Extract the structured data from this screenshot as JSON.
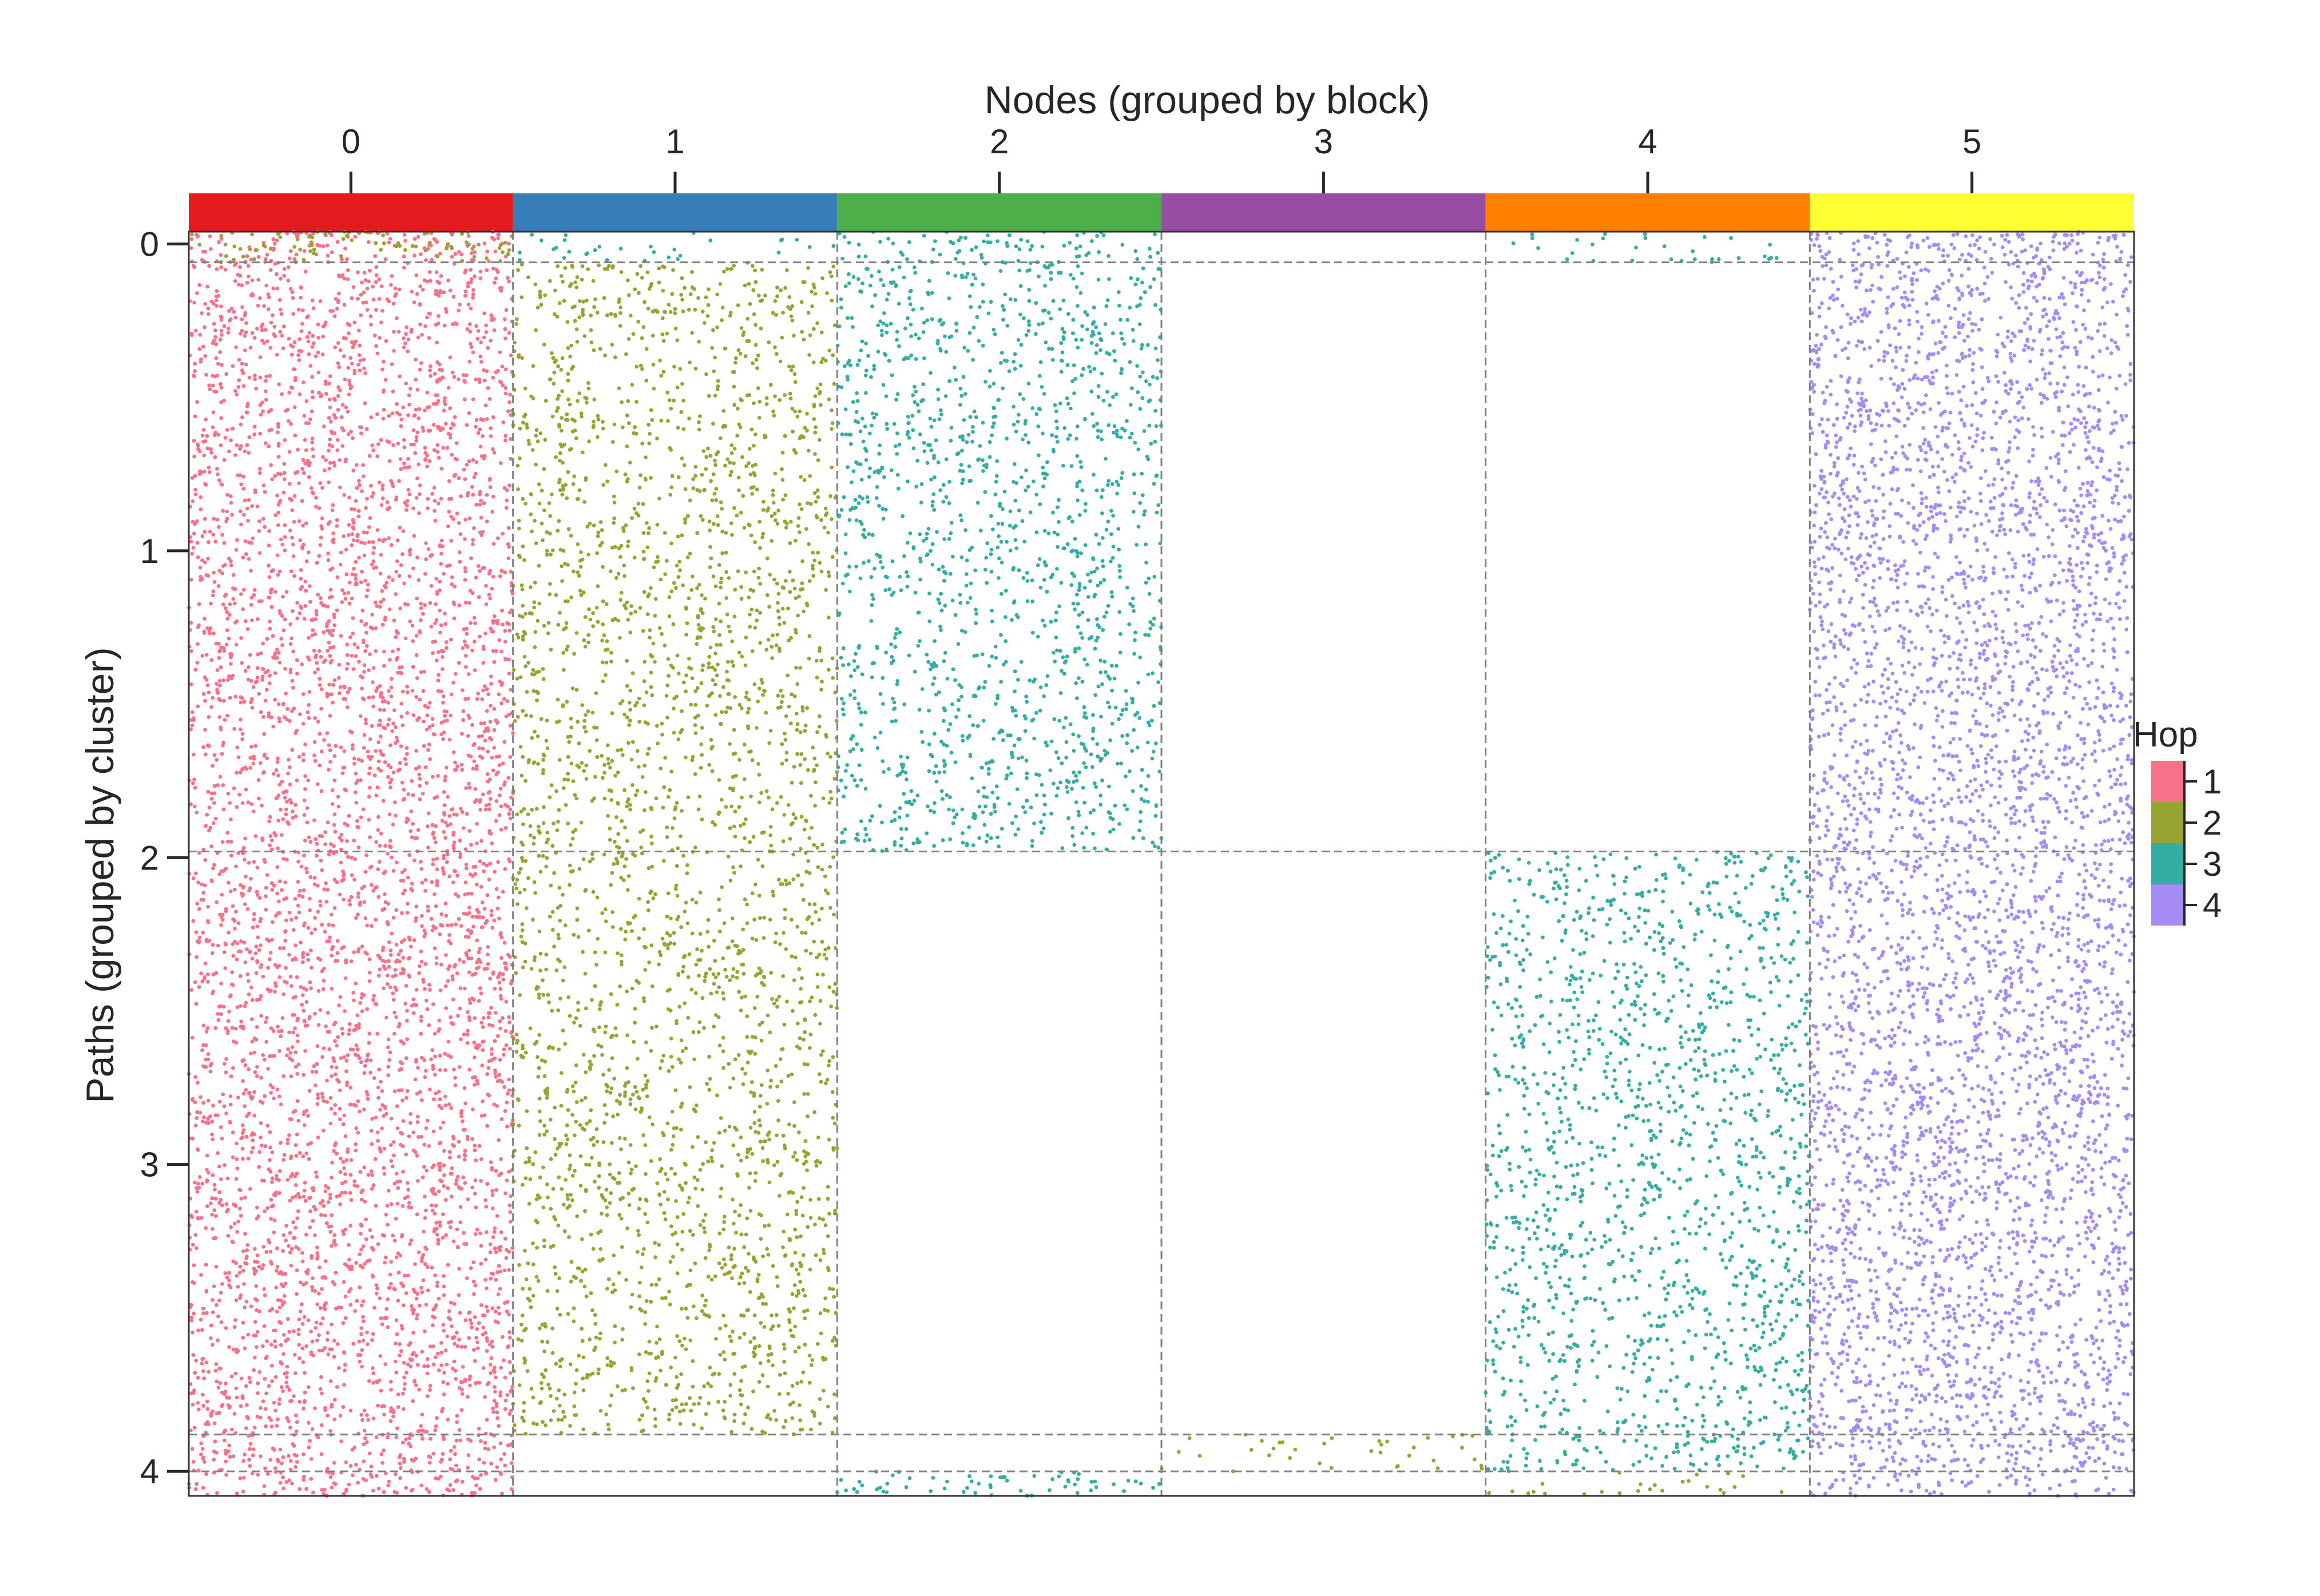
{
  "chart_data": {
    "type": "scatter",
    "title": "",
    "xlabel": "Nodes (grouped by block)",
    "ylabel": "Paths (grouped by cluster)",
    "xaxis_position": "top",
    "x_categories": [
      "0",
      "1",
      "2",
      "3",
      "4",
      "5"
    ],
    "block_colors": [
      "#e41a1c",
      "#377eb8",
      "#4daf4a",
      "#984ea3",
      "#ff7f00",
      "#ffff33"
    ],
    "y_ticks": [
      "0",
      "1",
      "2",
      "3",
      "4"
    ],
    "y_tick_values": [
      0,
      1,
      2,
      3,
      4
    ],
    "y_cluster_boundaries": [
      0.06,
      1.98,
      3.88,
      4.0
    ],
    "x_range": [
      0,
      6
    ],
    "y_range": [
      -0.04,
      4.08
    ],
    "grid": "dashed block/cluster boundaries",
    "legend": {
      "title": "Hop",
      "position": "right",
      "entries": [
        {
          "label": "1",
          "color": "#f77189"
        },
        {
          "label": "2",
          "color": "#97a431"
        },
        {
          "label": "3",
          "color": "#36ada4"
        },
        {
          "label": "4",
          "color": "#a48cf4"
        }
      ]
    },
    "series": [
      {
        "name": "1",
        "color": "#f77189",
        "regions": [
          {
            "x": [
              0,
              1
            ],
            "y": [
              -0.04,
              4.08
            ],
            "density": "high"
          }
        ]
      },
      {
        "name": "2",
        "color": "#97a431",
        "regions": [
          {
            "x": [
              0,
              1
            ],
            "y": [
              -0.04,
              0.06
            ],
            "density": "medium"
          },
          {
            "x": [
              1,
              2
            ],
            "y": [
              0.06,
              3.88
            ],
            "density": "medium"
          },
          {
            "x": [
              3,
              4
            ],
            "y": [
              3.88,
              4.0
            ],
            "density": "low"
          },
          {
            "x": [
              4,
              5
            ],
            "y": [
              4.0,
              4.08
            ],
            "density": "low"
          }
        ]
      },
      {
        "name": "3",
        "color": "#36ada4",
        "regions": [
          {
            "x": [
              1,
              2
            ],
            "y": [
              -0.04,
              0.06
            ],
            "density": "low"
          },
          {
            "x": [
              2,
              3
            ],
            "y": [
              -0.04,
              1.98
            ],
            "density": "medium"
          },
          {
            "x": [
              2,
              3
            ],
            "y": [
              4.0,
              4.08
            ],
            "density": "medium"
          },
          {
            "x": [
              4,
              5
            ],
            "y": [
              -0.04,
              0.06
            ],
            "density": "low"
          },
          {
            "x": [
              4,
              5
            ],
            "y": [
              1.98,
              4.0
            ],
            "density": "medium"
          }
        ]
      },
      {
        "name": "4",
        "color": "#a48cf4",
        "regions": [
          {
            "x": [
              5,
              6
            ],
            "y": [
              -0.04,
              4.08
            ],
            "density": "high"
          }
        ]
      }
    ]
  }
}
